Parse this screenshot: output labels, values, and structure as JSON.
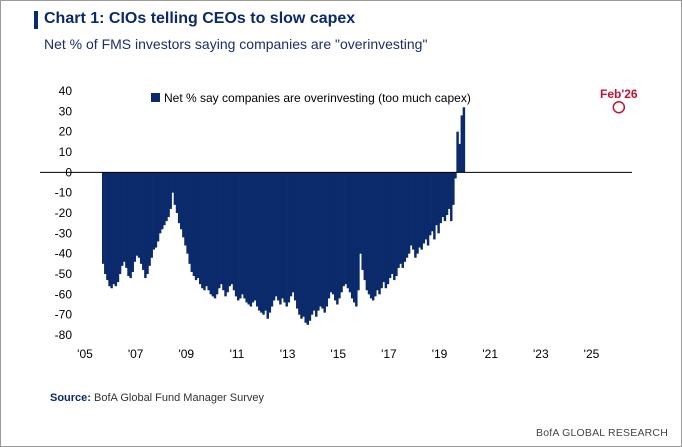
{
  "title": "Chart 1: CIOs telling CEOs to slow capex",
  "subtitle": "Net % of FMS investors saying companies are \"overinvesting\"",
  "source_label": "Source:",
  "source_text": "BofA Global Fund Manager Survey",
  "brand": "BofA GLOBAL RESEARCH",
  "colors": {
    "bar": "#0b2a6b",
    "title": "#0b2a6b",
    "annotation": "#c0152f"
  },
  "chart_data": {
    "type": "bar",
    "title": "",
    "xlabel": "",
    "ylabel": "",
    "ylim": [
      -80,
      40
    ],
    "yticks": [
      40,
      30,
      20,
      10,
      0,
      -10,
      -20,
      -30,
      -40,
      -50,
      -60,
      -70,
      -80
    ],
    "xticks": [
      "'05",
      "'07",
      "'09",
      "'11",
      "'13",
      "'15",
      "'17",
      "'19",
      "'21",
      "'23",
      "'25"
    ],
    "xrange": [
      2005,
      2026.6
    ],
    "grid": false,
    "legend": "top-center",
    "annotation": {
      "label": "Feb'26",
      "x": 2026.08,
      "y": 32
    },
    "series": [
      {
        "name": "Net % say companies are overinvesting (too much capex)",
        "start": 2005.67,
        "step": 0.0833,
        "values": [
          -45,
          -50,
          -53,
          -56,
          -57,
          -55,
          -56,
          -54,
          -50,
          -46,
          -44,
          -47,
          -51,
          -52,
          -49,
          -44,
          -41,
          -42,
          -45,
          -48,
          -52,
          -50,
          -46,
          -42,
          -38,
          -37,
          -34,
          -30,
          -28,
          -26,
          -24,
          -22,
          -18,
          -10,
          -16,
          -20,
          -25,
          -28,
          -32,
          -36,
          -40,
          -45,
          -49,
          -51,
          -53,
          -52,
          -55,
          -57,
          -58,
          -56,
          -58,
          -60,
          -61,
          -62,
          -60,
          -57,
          -55,
          -58,
          -61,
          -59,
          -56,
          -55,
          -58,
          -61,
          -63,
          -62,
          -60,
          -62,
          -64,
          -65,
          -66,
          -64,
          -63,
          -66,
          -68,
          -69,
          -70,
          -68,
          -72,
          -69,
          -66,
          -63,
          -61,
          -63,
          -65,
          -62,
          -64,
          -66,
          -64,
          -61,
          -59,
          -63,
          -67,
          -70,
          -72,
          -71,
          -74,
          -75,
          -73,
          -70,
          -68,
          -71,
          -68,
          -66,
          -67,
          -69,
          -66,
          -62,
          -59,
          -60,
          -63,
          -65,
          -62,
          -59,
          -56,
          -55,
          -57,
          -59,
          -62,
          -64,
          -66,
          -58,
          -40,
          -48,
          -53,
          -58,
          -60,
          -62,
          -63,
          -61,
          -58,
          -60,
          -57,
          -54,
          -57,
          -55,
          -52,
          -50,
          -53,
          -51,
          -47,
          -45,
          -47,
          -44,
          -42,
          -40,
          -36,
          -38,
          -42,
          -40,
          -37,
          -38,
          -35,
          -33,
          -36,
          -31,
          -29,
          -33,
          -26,
          -30,
          -25,
          -22,
          -24,
          -21,
          -18,
          -24,
          -16,
          -3,
          20,
          14,
          28,
          32
        ]
      }
    ]
  }
}
